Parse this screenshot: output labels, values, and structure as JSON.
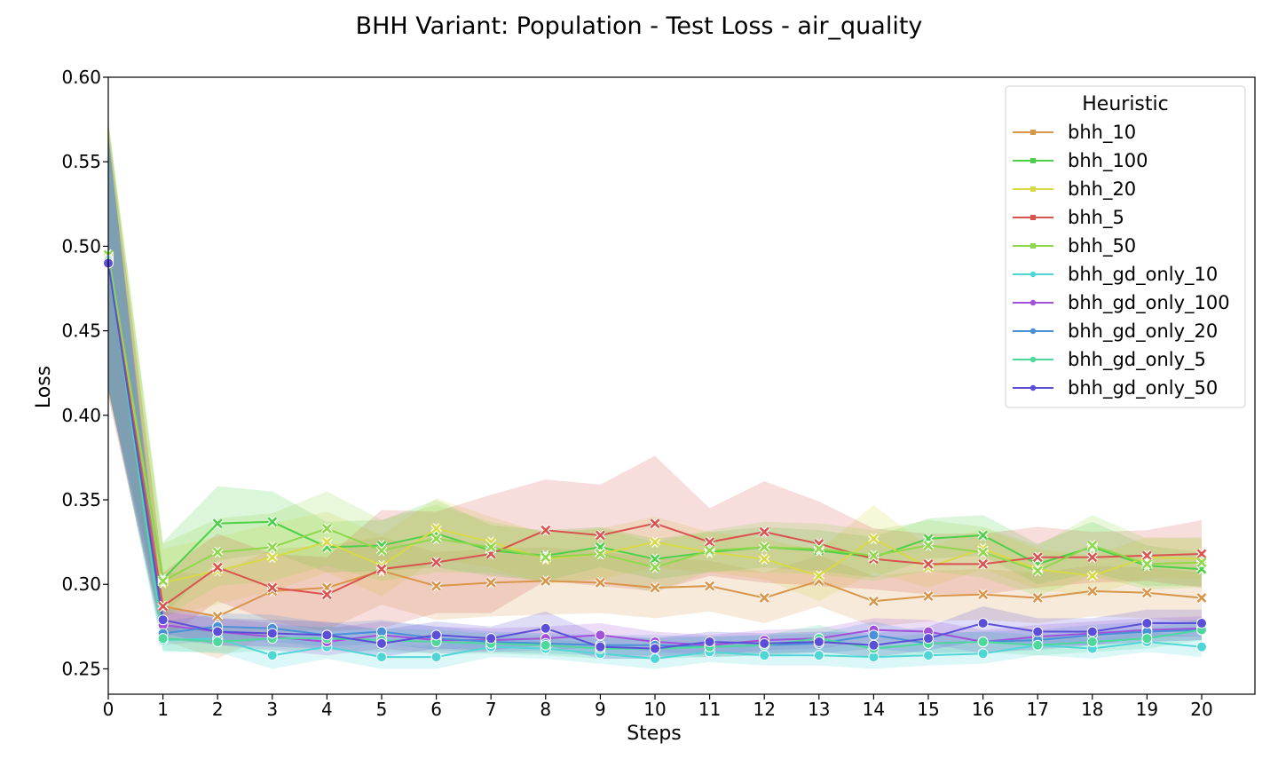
{
  "chart_data": {
    "type": "line",
    "title": "BHH Variant: Population - Test Loss - air_quality",
    "xlabel": "Steps",
    "ylabel": "Loss",
    "xlim": [
      0,
      20
    ],
    "ylim": [
      0.235,
      0.6
    ],
    "xticks": [
      "0",
      "1",
      "2",
      "3",
      "4",
      "5",
      "6",
      "7",
      "8",
      "9",
      "10",
      "11",
      "12",
      "13",
      "14",
      "15",
      "16",
      "17",
      "18",
      "19",
      "20"
    ],
    "yticks": [
      "0.25",
      "0.30",
      "0.35",
      "0.40",
      "0.45",
      "0.50",
      "0.55",
      "0.60"
    ],
    "grid": false,
    "legend": {
      "title": "Heuristic",
      "placement": "top-right"
    },
    "x": [
      0,
      1,
      2,
      3,
      4,
      5,
      6,
      7,
      8,
      9,
      10,
      11,
      12,
      13,
      14,
      15,
      16,
      17,
      18,
      19,
      20
    ],
    "series": [
      {
        "name": "bhh_10",
        "color": "#d9954a",
        "marker": "x",
        "values": [
          0.492,
          0.287,
          0.281,
          0.296,
          0.298,
          0.308,
          0.299,
          0.301,
          0.302,
          0.301,
          0.298,
          0.299,
          0.292,
          0.302,
          0.29,
          0.293,
          0.294,
          0.292,
          0.296,
          0.295,
          0.292
        ],
        "ci_width": [
          0.08,
          0.02,
          0.025,
          0.025,
          0.025,
          0.02,
          0.02,
          0.02,
          0.02,
          0.018,
          0.018,
          0.015,
          0.015,
          0.015,
          0.015,
          0.015,
          0.015,
          0.015,
          0.015,
          0.015,
          0.015
        ]
      },
      {
        "name": "bhh_100",
        "color": "#4cd148",
        "marker": "x",
        "values": [
          0.494,
          0.303,
          0.336,
          0.337,
          0.322,
          0.323,
          0.33,
          0.32,
          0.317,
          0.322,
          0.315,
          0.319,
          0.322,
          0.32,
          0.316,
          0.327,
          0.329,
          0.312,
          0.322,
          0.311,
          0.309
        ],
        "ci_width": [
          0.08,
          0.022,
          0.022,
          0.018,
          0.015,
          0.015,
          0.02,
          0.015,
          0.015,
          0.012,
          0.012,
          0.012,
          0.012,
          0.012,
          0.012,
          0.012,
          0.012,
          0.012,
          0.015,
          0.012,
          0.01
        ]
      },
      {
        "name": "bhh_20",
        "color": "#d7d945",
        "marker": "x",
        "values": [
          0.493,
          0.301,
          0.308,
          0.316,
          0.325,
          0.311,
          0.333,
          0.325,
          0.315,
          0.318,
          0.325,
          0.319,
          0.315,
          0.305,
          0.327,
          0.31,
          0.321,
          0.309,
          0.305,
          0.316,
          0.315
        ],
        "ci_width": [
          0.08,
          0.02,
          0.02,
          0.02,
          0.018,
          0.018,
          0.018,
          0.015,
          0.015,
          0.015,
          0.015,
          0.012,
          0.012,
          0.015,
          0.02,
          0.012,
          0.012,
          0.012,
          0.012,
          0.012,
          0.012
        ]
      },
      {
        "name": "bhh_5",
        "color": "#d9534f",
        "marker": "x",
        "values": [
          0.491,
          0.287,
          0.31,
          0.298,
          0.294,
          0.309,
          0.313,
          0.318,
          0.332,
          0.329,
          0.336,
          0.325,
          0.331,
          0.324,
          0.315,
          0.312,
          0.312,
          0.316,
          0.316,
          0.317,
          0.318
        ],
        "ci_width": [
          0.08,
          0.02,
          0.02,
          0.02,
          0.022,
          0.035,
          0.03,
          0.035,
          0.03,
          0.03,
          0.04,
          0.02,
          0.03,
          0.025,
          0.018,
          0.018,
          0.018,
          0.018,
          0.015,
          0.015,
          0.02
        ]
      },
      {
        "name": "bhh_50",
        "color": "#8fd84c",
        "marker": "x",
        "values": [
          0.495,
          0.302,
          0.319,
          0.322,
          0.333,
          0.32,
          0.327,
          0.322,
          0.316,
          0.318,
          0.31,
          0.32,
          0.322,
          0.321,
          0.317,
          0.323,
          0.319,
          0.308,
          0.323,
          0.312,
          0.313
        ],
        "ci_width": [
          0.08,
          0.022,
          0.02,
          0.02,
          0.022,
          0.018,
          0.02,
          0.015,
          0.015,
          0.015,
          0.015,
          0.012,
          0.015,
          0.015,
          0.015,
          0.015,
          0.015,
          0.015,
          0.018,
          0.015,
          0.015
        ]
      },
      {
        "name": "bhh_gd_only_10",
        "color": "#4fd6d6",
        "marker": "o",
        "values": [
          0.492,
          0.267,
          0.268,
          0.258,
          0.263,
          0.257,
          0.257,
          0.263,
          0.262,
          0.259,
          0.256,
          0.26,
          0.258,
          0.258,
          0.257,
          0.258,
          0.259,
          0.264,
          0.262,
          0.266,
          0.263
        ],
        "ci_width": [
          0.075,
          0.007,
          0.008,
          0.008,
          0.007,
          0.007,
          0.007,
          0.006,
          0.006,
          0.006,
          0.006,
          0.006,
          0.006,
          0.006,
          0.007,
          0.006,
          0.006,
          0.006,
          0.006,
          0.006,
          0.006
        ]
      },
      {
        "name": "bhh_gd_only_100",
        "color": "#a351d9",
        "marker": "o",
        "values": [
          0.49,
          0.276,
          0.272,
          0.269,
          0.266,
          0.27,
          0.267,
          0.267,
          0.268,
          0.27,
          0.266,
          0.264,
          0.267,
          0.268,
          0.273,
          0.272,
          0.266,
          0.269,
          0.271,
          0.273,
          0.274
        ],
        "ci_width": [
          0.075,
          0.008,
          0.008,
          0.008,
          0.008,
          0.008,
          0.008,
          0.007,
          0.007,
          0.007,
          0.006,
          0.006,
          0.006,
          0.006,
          0.007,
          0.007,
          0.007,
          0.007,
          0.007,
          0.007,
          0.007
        ]
      },
      {
        "name": "bhh_gd_only_20",
        "color": "#4a90d9",
        "marker": "o",
        "values": [
          0.491,
          0.271,
          0.275,
          0.274,
          0.27,
          0.272,
          0.268,
          0.266,
          0.265,
          0.264,
          0.264,
          0.263,
          0.264,
          0.265,
          0.27,
          0.265,
          0.266,
          0.267,
          0.27,
          0.272,
          0.273
        ],
        "ci_width": [
          0.075,
          0.007,
          0.008,
          0.008,
          0.007,
          0.007,
          0.007,
          0.006,
          0.006,
          0.006,
          0.006,
          0.006,
          0.006,
          0.006,
          0.008,
          0.006,
          0.006,
          0.006,
          0.006,
          0.006,
          0.006
        ]
      },
      {
        "name": "bhh_gd_only_5",
        "color": "#4cd99b",
        "marker": "o",
        "values": [
          0.491,
          0.268,
          0.266,
          0.268,
          0.268,
          0.267,
          0.266,
          0.265,
          0.264,
          0.262,
          0.262,
          0.263,
          0.264,
          0.268,
          0.262,
          0.265,
          0.266,
          0.264,
          0.266,
          0.268,
          0.273
        ],
        "ci_width": [
          0.075,
          0.007,
          0.007,
          0.007,
          0.007,
          0.007,
          0.007,
          0.006,
          0.006,
          0.006,
          0.006,
          0.006,
          0.006,
          0.008,
          0.006,
          0.006,
          0.006,
          0.006,
          0.006,
          0.006,
          0.006
        ]
      },
      {
        "name": "bhh_gd_only_50",
        "color": "#5b4fd9",
        "marker": "o",
        "values": [
          0.49,
          0.279,
          0.272,
          0.271,
          0.27,
          0.265,
          0.27,
          0.268,
          0.274,
          0.263,
          0.262,
          0.266,
          0.265,
          0.266,
          0.264,
          0.268,
          0.277,
          0.272,
          0.272,
          0.277,
          0.277
        ],
        "ci_width": [
          0.075,
          0.008,
          0.008,
          0.008,
          0.008,
          0.008,
          0.008,
          0.007,
          0.01,
          0.007,
          0.006,
          0.006,
          0.006,
          0.006,
          0.007,
          0.007,
          0.01,
          0.008,
          0.008,
          0.008,
          0.008
        ]
      }
    ]
  }
}
